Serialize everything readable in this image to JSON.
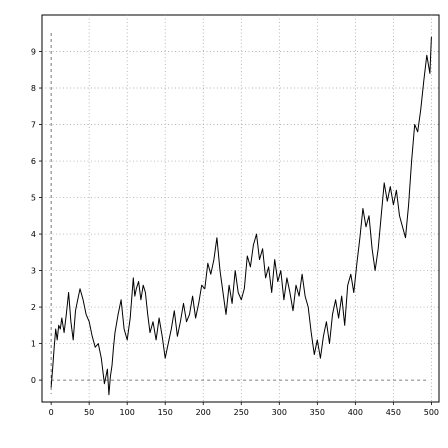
{
  "chart_data": {
    "type": "line",
    "title": "",
    "xlabel": "",
    "ylabel": "",
    "xlim": [
      -12,
      510
    ],
    "ylim": [
      -0.6,
      10.0
    ],
    "grid": true,
    "grid_style": "dotted",
    "x_ticks": [
      0,
      50,
      100,
      150,
      200,
      250,
      300,
      350,
      400,
      450,
      500
    ],
    "y_ticks": [
      0,
      1,
      2,
      3,
      4,
      5,
      6,
      7,
      8,
      9
    ],
    "x_tick_labels": [
      "0",
      "50",
      "100",
      "150",
      "200",
      "250",
      "300",
      "350",
      "400",
      "450",
      "500"
    ],
    "y_tick_labels": [
      "0",
      "1",
      "2",
      "3",
      "4",
      "5",
      "6",
      "7",
      "8",
      "9"
    ],
    "reference_lines": [
      {
        "orientation": "horizontal",
        "value": 0,
        "style": "dashed"
      },
      {
        "orientation": "vertical",
        "value": 0,
        "style": "dashed"
      }
    ],
    "series": [
      {
        "color": "#000000",
        "x": [
          0,
          2,
          4,
          6,
          8,
          10,
          12,
          14,
          17,
          20,
          23,
          26,
          29,
          32,
          35,
          38,
          42,
          46,
          50,
          54,
          58,
          62,
          66,
          70,
          74,
          76,
          78,
          80,
          82,
          84,
          88,
          92,
          96,
          100,
          104,
          108,
          110,
          112,
          115,
          118,
          121,
          124,
          127,
          130,
          134,
          138,
          142,
          146,
          150,
          154,
          158,
          162,
          166,
          170,
          174,
          178,
          182,
          186,
          190,
          194,
          198,
          202,
          206,
          210,
          214,
          218,
          222,
          226,
          230,
          234,
          238,
          242,
          246,
          250,
          254,
          258,
          262,
          266,
          270,
          274,
          278,
          282,
          286,
          290,
          294,
          298,
          302,
          306,
          310,
          314,
          318,
          322,
          326,
          330,
          334,
          338,
          342,
          346,
          350,
          354,
          358,
          362,
          366,
          370,
          374,
          378,
          382,
          386,
          390,
          394,
          398,
          402,
          406,
          410,
          414,
          418,
          422,
          426,
          430,
          434,
          438,
          442,
          446,
          450,
          454,
          458,
          462,
          466,
          470,
          474,
          478,
          482,
          486,
          490,
          494,
          498,
          500
        ],
        "y": [
          -0.2,
          0.3,
          0.9,
          1.4,
          1.1,
          1.5,
          1.4,
          1.7,
          1.3,
          1.8,
          2.4,
          1.6,
          1.1,
          1.9,
          2.2,
          2.5,
          2.2,
          1.8,
          1.6,
          1.2,
          0.9,
          1.0,
          0.6,
          -0.1,
          0.3,
          -0.4,
          0.1,
          0.4,
          0.9,
          1.3,
          1.8,
          2.2,
          1.4,
          1.1,
          1.7,
          2.8,
          2.3,
          2.5,
          2.7,
          2.2,
          2.6,
          2.4,
          1.8,
          1.3,
          1.6,
          1.1,
          1.7,
          1.2,
          0.6,
          1.0,
          1.4,
          1.9,
          1.2,
          1.6,
          2.1,
          1.6,
          1.8,
          2.3,
          1.7,
          2.1,
          2.6,
          2.5,
          3.2,
          2.9,
          3.3,
          3.9,
          3.0,
          2.4,
          1.8,
          2.6,
          2.1,
          3.0,
          2.4,
          2.2,
          2.5,
          3.4,
          3.1,
          3.7,
          4.0,
          3.3,
          3.6,
          2.8,
          3.1,
          2.4,
          3.3,
          2.7,
          3.0,
          2.2,
          2.8,
          2.4,
          1.9,
          2.6,
          2.3,
          2.9,
          2.3,
          2.0,
          1.3,
          0.7,
          1.1,
          0.6,
          1.2,
          1.6,
          1.0,
          1.8,
          2.2,
          1.7,
          2.3,
          1.5,
          2.6,
          2.9,
          2.4,
          3.2,
          3.9,
          4.7,
          4.2,
          4.5,
          3.6,
          3.0,
          3.6,
          4.5,
          5.4,
          4.9,
          5.3,
          4.8,
          5.2,
          4.5,
          4.2,
          3.9,
          4.8,
          6.0,
          7.0,
          6.8,
          7.4,
          8.2,
          8.9,
          8.4,
          9.4
        ]
      }
    ]
  }
}
